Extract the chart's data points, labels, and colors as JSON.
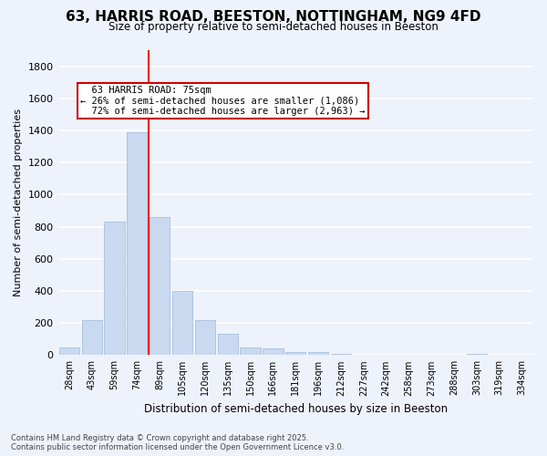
{
  "title_line1": "63, HARRIS ROAD, BEESTON, NOTTINGHAM, NG9 4FD",
  "title_line2": "Size of property relative to semi-detached houses in Beeston",
  "xlabel": "Distribution of semi-detached houses by size in Beeston",
  "ylabel": "Number of semi-detached properties",
  "categories": [
    "28sqm",
    "43sqm",
    "59sqm",
    "74sqm",
    "89sqm",
    "105sqm",
    "120sqm",
    "135sqm",
    "150sqm",
    "166sqm",
    "181sqm",
    "196sqm",
    "212sqm",
    "227sqm",
    "242sqm",
    "258sqm",
    "273sqm",
    "288sqm",
    "303sqm",
    "319sqm",
    "334sqm"
  ],
  "values": [
    50,
    220,
    830,
    1390,
    860,
    400,
    220,
    130,
    50,
    40,
    20,
    20,
    10,
    0,
    0,
    0,
    0,
    0,
    10,
    0,
    0
  ],
  "bar_color": "#c9d9f0",
  "bar_edge_color": "#a0b8d8",
  "property_label": "63 HARRIS ROAD: 75sqm",
  "pct_smaller": 26,
  "pct_larger": 72,
  "count_smaller": 1086,
  "count_larger": 2963,
  "annotation_box_color": "#cc0000",
  "background_color": "#eef2fb",
  "grid_color": "#ffffff",
  "ylim": [
    0,
    1900
  ],
  "yticks": [
    0,
    200,
    400,
    600,
    800,
    1000,
    1200,
    1400,
    1600,
    1800
  ],
  "footer_line1": "Contains HM Land Registry data © Crown copyright and database right 2025.",
  "footer_line2": "Contains public sector information licensed under the Open Government Licence v3.0."
}
